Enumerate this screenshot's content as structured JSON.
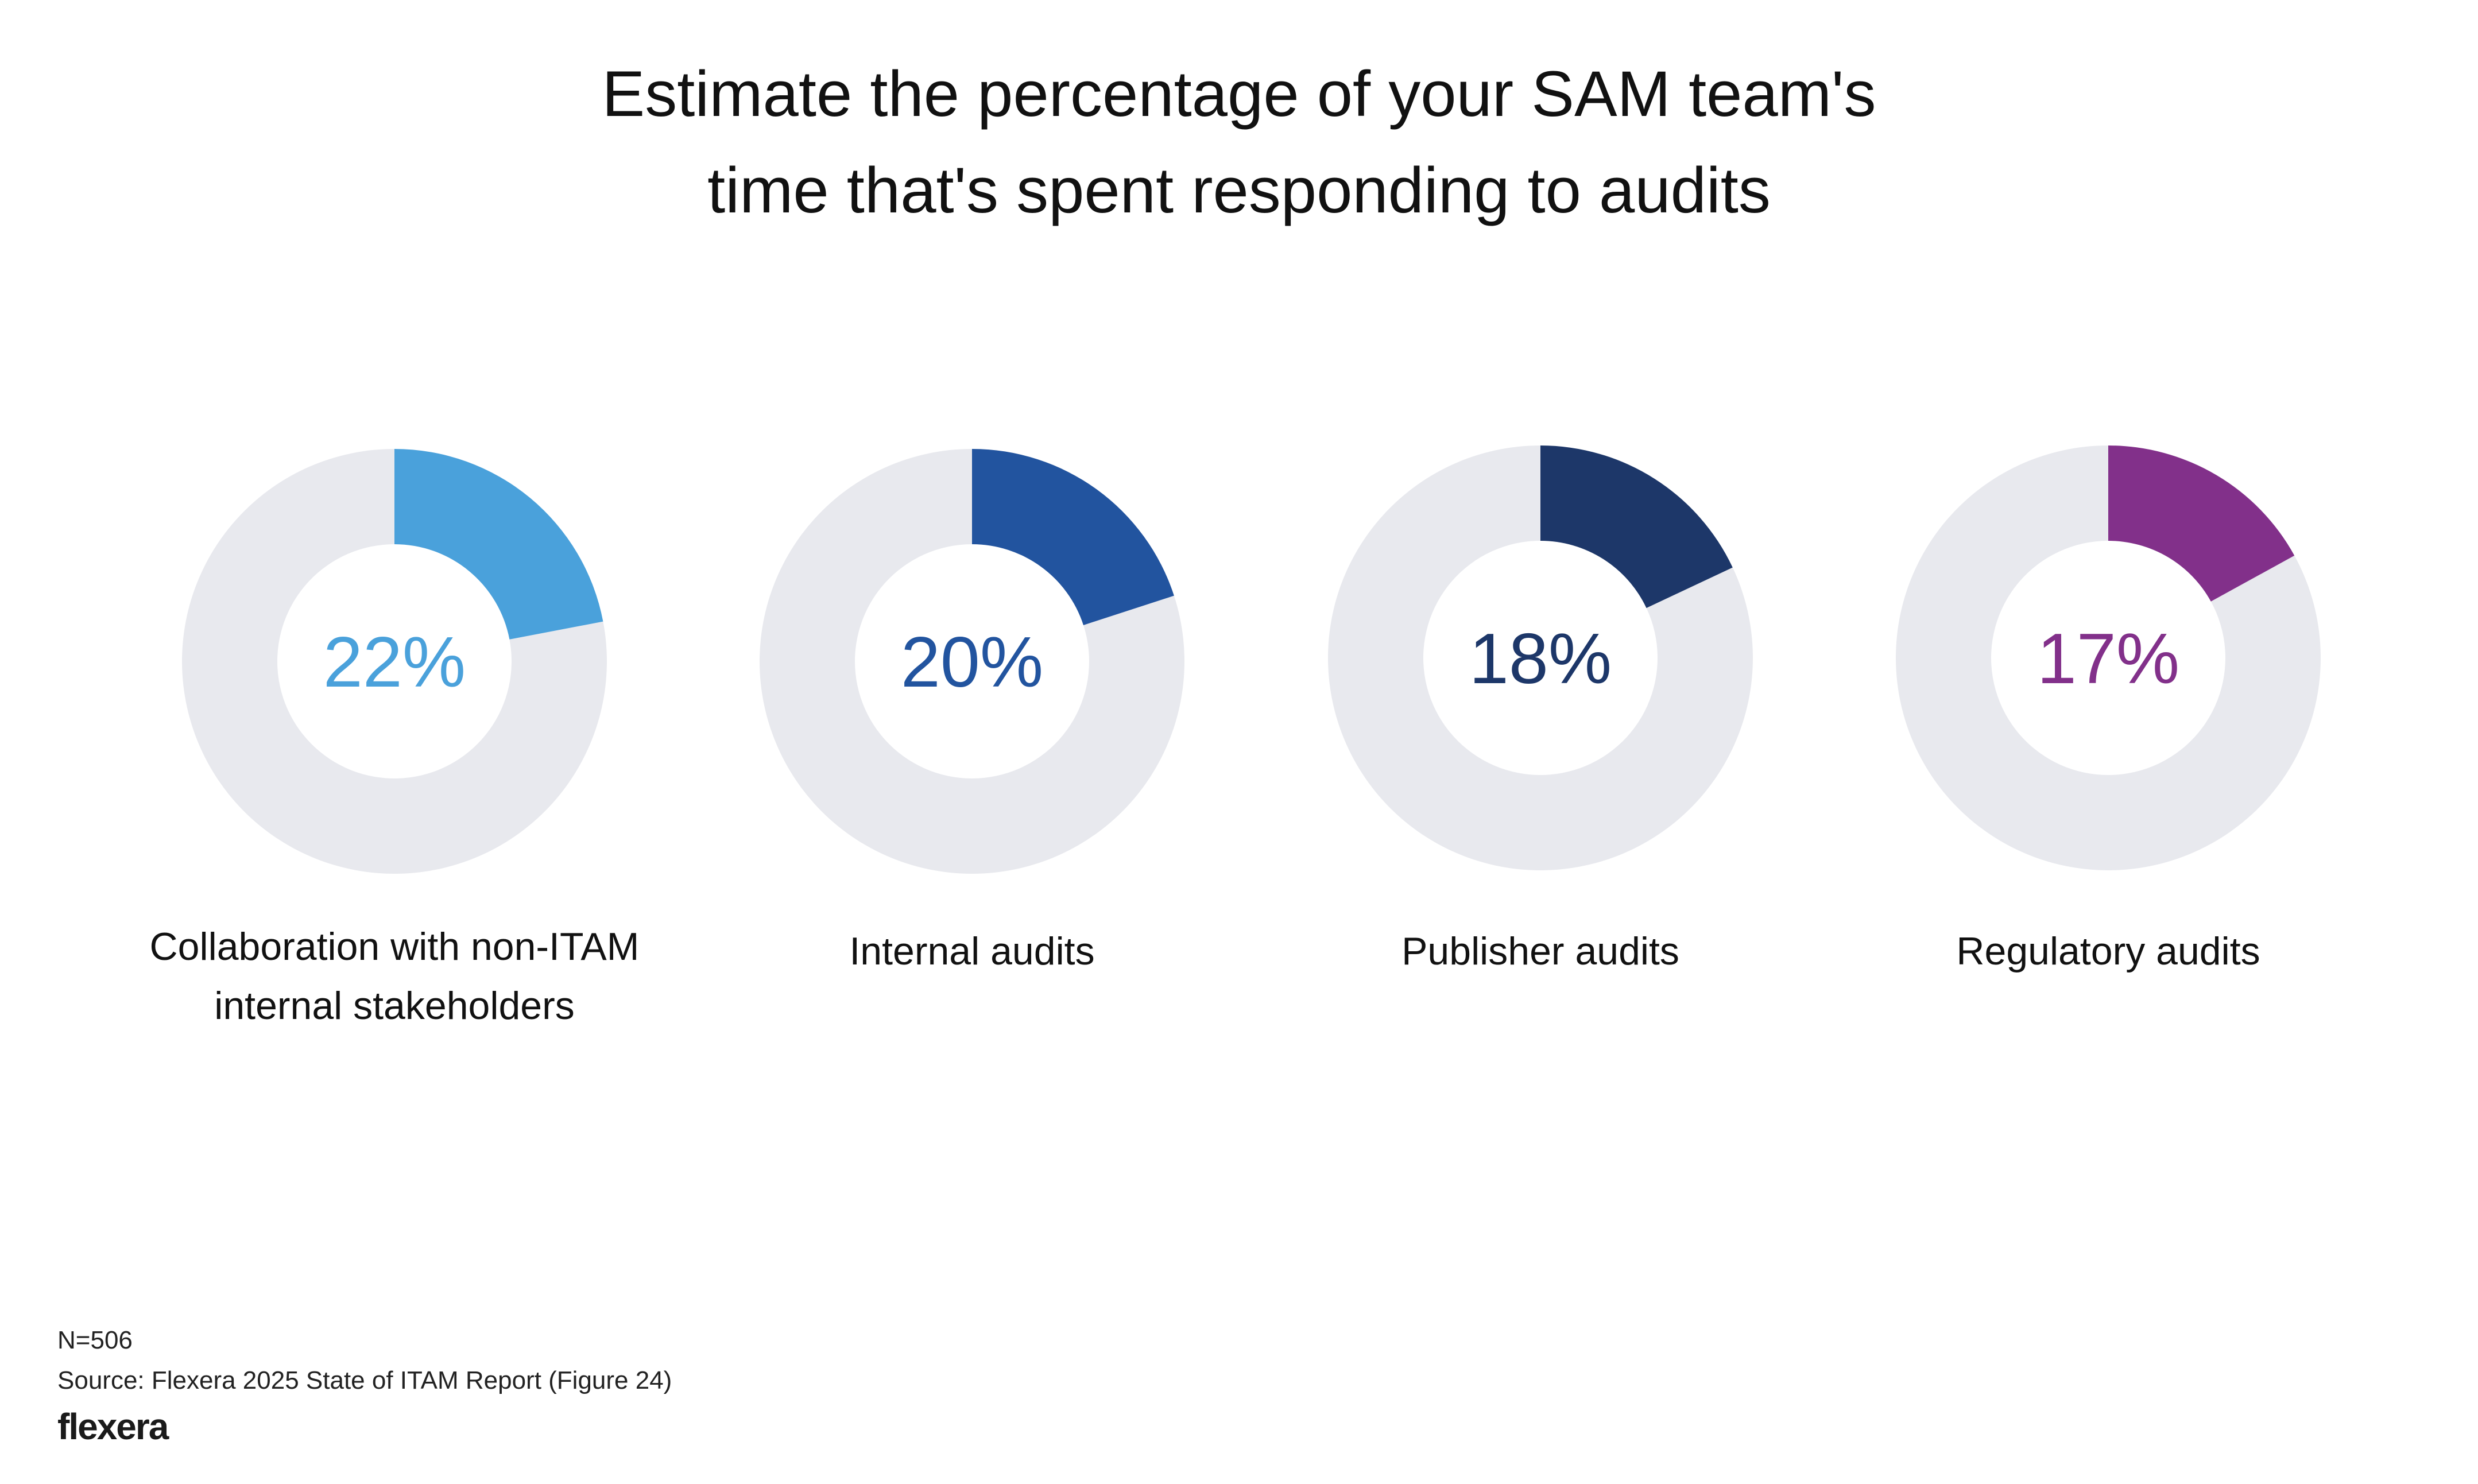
{
  "chart_data": {
    "type": "pie",
    "subtype": "donut",
    "title": [
      "Estimate the percentage of your SAM team's",
      "time that's spent responding to audits"
    ],
    "track_color": "#E8E9EE",
    "items": [
      {
        "label": [
          "Collaboration with non-ITAM",
          "internal stakeholders"
        ],
        "value": 22,
        "display": "22%",
        "color": "#4AA1DB"
      },
      {
        "label": [
          "Internal audits"
        ],
        "value": 20,
        "display": "20%",
        "color": "#22549F"
      },
      {
        "label": [
          "Publisher audits"
        ],
        "value": 18,
        "display": "18%",
        "color": "#1D3769"
      },
      {
        "label": [
          "Regulatory audits"
        ],
        "value": 17,
        "display": "17%",
        "color": "#82308A"
      }
    ]
  },
  "footer": {
    "n": "N=506",
    "source": "Source: Flexera 2025 State of ITAM Report (Figure 24)",
    "logo": "flexera"
  }
}
